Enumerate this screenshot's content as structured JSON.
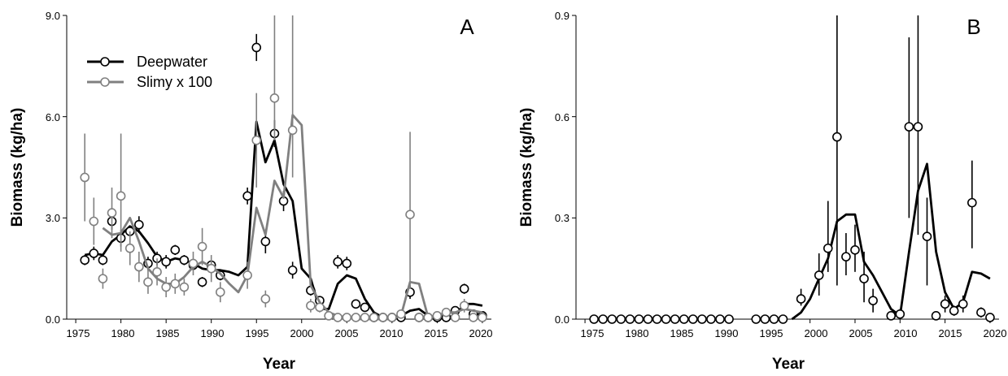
{
  "chart_data": [
    {
      "type": "line",
      "panel_label": "A",
      "xlabel": "Year",
      "ylabel": "Biomass (kg/ha)",
      "xlim": [
        1974,
        2021
      ],
      "ylim": [
        0,
        9
      ],
      "xticks": [
        "1975",
        "1980",
        "1985",
        "1990",
        "1995",
        "2000",
        "2005",
        "2010",
        "2015",
        "2020"
      ],
      "yticks": [
        "0.0",
        "3.0",
        "6.0",
        "9.0"
      ],
      "legend_position": "top-left",
      "series": [
        {
          "name": "Deepwater",
          "color": "#000000",
          "point_x": [
            1976,
            1977,
            1978,
            1979,
            1980,
            1981,
            1982,
            1983,
            1984,
            1985,
            1986,
            1987,
            1988,
            1989,
            1990,
            1991,
            1994,
            1995,
            1996,
            1997,
            1998,
            1999,
            2001,
            2002,
            2004,
            2005,
            2006,
            2007,
            2008,
            2009,
            2010,
            2011,
            2012,
            2013,
            2014,
            2015,
            2016,
            2017,
            2018,
            2019,
            2020
          ],
          "points": [
            1.75,
            1.95,
            1.75,
            2.9,
            2.4,
            2.6,
            2.8,
            1.65,
            1.8,
            1.7,
            2.05,
            1.75,
            1.6,
            1.1,
            1.6,
            1.3,
            3.65,
            8.05,
            2.3,
            5.5,
            3.5,
            1.45,
            0.85,
            0.55,
            1.7,
            1.65,
            0.45,
            0.35,
            0.05,
            0.05,
            0.05,
            0.05,
            0.8,
            0.05,
            0.05,
            0.05,
            0.05,
            0.25,
            0.9,
            0.15,
            0.1
          ],
          "err_low": [
            1.6,
            1.75,
            1.6,
            2.65,
            2.15,
            2.45,
            2.55,
            1.45,
            1.6,
            1.5,
            1.9,
            1.6,
            1.45,
            0.95,
            1.45,
            1.15,
            3.4,
            7.65,
            1.95,
            5.1,
            3.2,
            1.2,
            0.7,
            0.45,
            1.5,
            1.45,
            0.35,
            0.25,
            0.02,
            0.02,
            0.02,
            0.02,
            0.6,
            0.02,
            0.02,
            0.02,
            0.02,
            0.15,
            0.75,
            0.05,
            0.05
          ],
          "err_high": [
            1.9,
            2.15,
            1.9,
            3.15,
            2.65,
            2.75,
            3.05,
            1.85,
            2.0,
            1.9,
            2.2,
            1.9,
            1.75,
            1.25,
            1.75,
            1.45,
            3.9,
            8.45,
            2.65,
            5.9,
            3.8,
            1.7,
            1.0,
            0.65,
            1.9,
            1.85,
            0.55,
            0.45,
            0.1,
            0.1,
            0.1,
            0.1,
            1.0,
            0.1,
            0.1,
            0.1,
            0.1,
            0.35,
            1.05,
            0.25,
            0.15
          ],
          "fit_x": [
            1976,
            1977,
            1978,
            1979,
            1980,
            1981,
            1982,
            1983,
            1984,
            1985,
            1986,
            1987,
            1988,
            1989,
            1990,
            1991,
            1992,
            1993,
            1994,
            1995,
            1996,
            1997,
            1998,
            1999,
            2000,
            2001,
            2002,
            2003,
            2004,
            2005,
            2006,
            2007,
            2008,
            2009,
            2010,
            2011,
            2012,
            2013,
            2014,
            2015,
            2016,
            2017,
            2018,
            2019,
            2020
          ],
          "fit": [
            1.9,
            1.95,
            1.9,
            2.3,
            2.5,
            2.75,
            2.6,
            2.25,
            1.85,
            1.7,
            1.8,
            1.75,
            1.65,
            1.5,
            1.45,
            1.45,
            1.4,
            1.3,
            1.55,
            5.85,
            4.65,
            5.3,
            4.0,
            3.5,
            1.5,
            1.2,
            0.3,
            0.3,
            1.05,
            1.3,
            1.2,
            0.6,
            0.2,
            0.05,
            0.05,
            0.1,
            0.25,
            0.3,
            0.1,
            0.05,
            0.05,
            0.1,
            0.45,
            0.45,
            0.4
          ]
        },
        {
          "name": "Slimy x 100",
          "color": "#808080",
          "point_x": [
            1976,
            1977,
            1978,
            1979,
            1980,
            1981,
            1982,
            1983,
            1984,
            1985,
            1986,
            1987,
            1988,
            1989,
            1990,
            1991,
            1994,
            1995,
            1996,
            1997,
            1999,
            2001,
            2002,
            2003,
            2004,
            2005,
            2006,
            2007,
            2008,
            2009,
            2010,
            2011,
            2012,
            2013,
            2014,
            2015,
            2016,
            2017,
            2018,
            2019,
            2020
          ],
          "points": [
            4.2,
            2.9,
            1.2,
            3.15,
            3.65,
            2.1,
            1.55,
            1.1,
            1.4,
            0.95,
            1.05,
            0.95,
            1.65,
            2.15,
            1.5,
            0.8,
            1.3,
            5.3,
            0.6,
            6.55,
            5.6,
            0.4,
            0.35,
            0.1,
            0.05,
            0.05,
            0.05,
            0.05,
            0.05,
            0.05,
            0.05,
            0.15,
            3.1,
            0.05,
            0.05,
            0.1,
            0.2,
            0.05,
            0.4,
            0.05,
            0.05
          ],
          "err_low": [
            2.9,
            2.2,
            0.9,
            2.4,
            2.0,
            1.6,
            1.1,
            0.75,
            1.0,
            0.65,
            0.75,
            0.7,
            1.3,
            1.6,
            1.1,
            0.5,
            0.9,
            3.9,
            0.35,
            5.3,
            4.2,
            0.2,
            0.2,
            0.0,
            0.0,
            0.0,
            0.0,
            0.0,
            0.0,
            0.0,
            0.0,
            0.05,
            0.9,
            0.0,
            0.0,
            0.05,
            0.1,
            0.0,
            0.2,
            0.0,
            0.0
          ],
          "err_high": [
            5.5,
            3.6,
            1.5,
            3.9,
            5.5,
            2.6,
            2.0,
            1.5,
            1.8,
            1.25,
            1.35,
            1.2,
            2.0,
            2.7,
            1.9,
            1.1,
            1.7,
            6.7,
            0.85,
            9.0,
            9.0,
            0.6,
            0.5,
            0.2,
            0.1,
            0.1,
            0.1,
            0.1,
            0.1,
            0.1,
            0.1,
            0.25,
            5.55,
            0.1,
            0.1,
            0.15,
            0.3,
            0.1,
            0.6,
            0.1,
            0.1
          ],
          "fit_x": [
            1978,
            1979,
            1980,
            1981,
            1982,
            1983,
            1984,
            1985,
            1986,
            1987,
            1988,
            1989,
            1990,
            1991,
            1992,
            1993,
            1994,
            1995,
            1996,
            1997,
            1998,
            1999,
            2000,
            2001,
            2002,
            2003,
            2004,
            2005,
            2006,
            2007,
            2008,
            2009,
            2010,
            2011,
            2012,
            2013,
            2014,
            2015,
            2016,
            2017,
            2018,
            2019,
            2020
          ],
          "fit": [
            2.7,
            2.5,
            2.55,
            3.0,
            2.3,
            1.5,
            1.2,
            1.05,
            1.05,
            1.25,
            1.55,
            1.7,
            1.55,
            1.35,
            1.05,
            0.8,
            1.3,
            3.3,
            2.5,
            4.1,
            3.6,
            6.05,
            5.75,
            1.0,
            0.5,
            0.2,
            0.1,
            0.05,
            0.0,
            0.0,
            0.0,
            0.0,
            0.0,
            0.1,
            1.1,
            1.05,
            0.05,
            0.1,
            0.2,
            0.2,
            0.3,
            0.25,
            0.2
          ]
        }
      ]
    },
    {
      "type": "line",
      "panel_label": "B",
      "xlabel": "Year",
      "ylabel": "Biomass (kg/ha)",
      "xlim": [
        1974,
        2021
      ],
      "ylim": [
        0,
        0.9
      ],
      "xticks": [
        "1975",
        "1980",
        "1985",
        "1990",
        "1995",
        "2000",
        "2005",
        "2010",
        "2015",
        "2020"
      ],
      "yticks": [
        "0.0",
        "0.3",
        "0.6",
        "0.9"
      ],
      "series": [
        {
          "name": "",
          "color": "#000000",
          "point_x": [
            1976,
            1977,
            1978,
            1979,
            1980,
            1981,
            1982,
            1983,
            1984,
            1985,
            1986,
            1987,
            1988,
            1989,
            1990,
            1991,
            1994,
            1995,
            1996,
            1997,
            1999,
            2001,
            2002,
            2003,
            2004,
            2005,
            2006,
            2007,
            2009,
            2010,
            2011,
            2012,
            2013,
            2014,
            2015,
            2016,
            2017,
            2018,
            2019,
            2020
          ],
          "points": [
            0,
            0,
            0,
            0,
            0,
            0,
            0,
            0,
            0,
            0,
            0,
            0,
            0,
            0,
            0,
            0,
            0,
            0,
            0,
            0,
            0.06,
            0.13,
            0.21,
            0.54,
            0.185,
            0.205,
            0.12,
            0.055,
            0.01,
            0.015,
            0.57,
            0.57,
            0.245,
            0.01,
            0.045,
            0.025,
            0.045,
            0.345,
            0.02,
            0.005
          ],
          "err_low": [
            0,
            0,
            0,
            0,
            0,
            0,
            0,
            0,
            0,
            0,
            0,
            0,
            0,
            0,
            0,
            0,
            0,
            0,
            0,
            0,
            0.04,
            0.07,
            0.14,
            0.1,
            0.13,
            0.14,
            0.05,
            0.02,
            0.0,
            0.0,
            0.3,
            0.25,
            0.1,
            0.0,
            0.02,
            0.01,
            0.02,
            0.21,
            0.005,
            0.0
          ],
          "err_high": [
            0,
            0,
            0,
            0,
            0,
            0,
            0,
            0,
            0,
            0,
            0,
            0,
            0,
            0,
            0,
            0,
            0,
            0,
            0,
            0,
            0.09,
            0.195,
            0.35,
            0.9,
            0.255,
            0.28,
            0.2,
            0.09,
            0.02,
            0.03,
            0.835,
            0.9,
            0.36,
            0.02,
            0.07,
            0.04,
            0.07,
            0.47,
            0.035,
            0.015
          ],
          "fit_x": [
            1998,
            1999,
            2000,
            2001,
            2002,
            2003,
            2004,
            2005,
            2006,
            2007,
            2008,
            2009,
            2010,
            2011,
            2012,
            2013,
            2014,
            2015,
            2016,
            2017,
            2018,
            2019,
            2020
          ],
          "fit": [
            0.0,
            0.02,
            0.06,
            0.12,
            0.18,
            0.29,
            0.31,
            0.31,
            0.17,
            0.13,
            0.08,
            0.03,
            0.01,
            0.2,
            0.38,
            0.46,
            0.2,
            0.08,
            0.03,
            0.05,
            0.14,
            0.135,
            0.12
          ]
        }
      ]
    }
  ]
}
